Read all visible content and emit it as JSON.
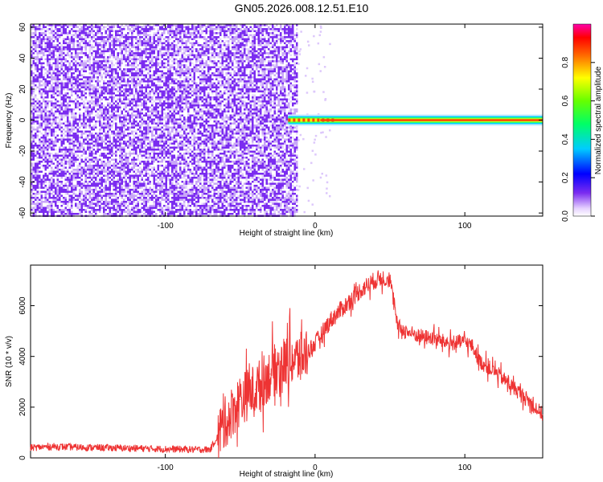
{
  "title": "GN05.2026.008.12.51.E10",
  "colors": {
    "line": "#ee3333",
    "specLow": "#7b2cf0",
    "specLight": "#c8a6f7"
  },
  "chart_data": [
    {
      "type": "heatmap",
      "xlabel": "Height of straight line (km)",
      "ylabel": "Frequency (Hz)",
      "xlim": [
        -190,
        152
      ],
      "ylim": [
        -62,
        62
      ],
      "xticks": [
        -100,
        0,
        100
      ],
      "xtick_labels": [
        "-100",
        "0",
        "100"
      ],
      "yticks": [
        -60,
        -40,
        -20,
        0,
        20,
        40,
        60
      ],
      "ytick_labels": [
        "-60",
        "-40",
        "-20",
        "0",
        "20",
        "40",
        "60"
      ],
      "noise_region_x": [
        -190,
        -12
      ],
      "signal_band_x": [
        -18,
        152
      ],
      "signal_band_freq": 0,
      "colorbar": {
        "label": "Normalized spectral amplitude",
        "range": [
          0,
          1
        ],
        "ticks": [
          0.0,
          0.2,
          0.4,
          0.6,
          0.8
        ],
        "tick_labels": [
          "0.0",
          "0.2",
          "0.4",
          "0.6",
          "0.8"
        ],
        "colormap": "rainbow"
      }
    },
    {
      "type": "line",
      "xlabel": "Height of straight line (km)",
      "ylabel": "SNR (10 * v/v)",
      "xlim": [
        -190,
        152
      ],
      "ylim": [
        0,
        7600
      ],
      "xticks": [
        -100,
        0,
        100
      ],
      "xtick_labels": [
        "-100",
        "0",
        "100"
      ],
      "yticks": [
        0,
        2000,
        4000,
        6000
      ],
      "ytick_labels": [
        "0",
        "2000",
        "4000",
        "6000"
      ],
      "x": [
        -190,
        -175,
        -160,
        -140,
        -120,
        -100,
        -80,
        -70,
        -60,
        -50,
        -40,
        -30,
        -20,
        -10,
        0,
        10,
        20,
        30,
        40,
        45,
        50,
        52,
        55,
        60,
        70,
        80,
        90,
        100,
        105,
        110,
        120,
        130,
        140,
        152
      ],
      "values": [
        400,
        450,
        420,
        400,
        380,
        350,
        330,
        330,
        1400,
        2300,
        2700,
        3300,
        3800,
        3900,
        4500,
        5400,
        6000,
        6600,
        7000,
        7100,
        7050,
        6300,
        5200,
        5000,
        4800,
        4700,
        4500,
        4600,
        4400,
        3800,
        3400,
        2900,
        2400,
        1700
      ]
    }
  ]
}
